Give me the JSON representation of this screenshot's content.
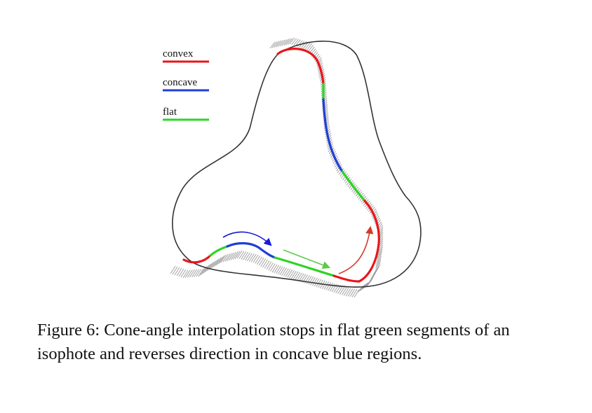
{
  "legend": {
    "convex": "convex",
    "concave": "concave",
    "flat": "flat"
  },
  "colors": {
    "convex": "#e8161b",
    "concave": "#1f3fd6",
    "flat": "#2ed424",
    "outline": "#333333",
    "hatch": "#9a9a9a",
    "arrow_blue": "#1a1ad8",
    "arrow_green": "#5fc94a",
    "arrow_red": "#d13b2a"
  },
  "caption": "Figure 6: Cone-angle interpolation stops in flat green segments of an isophote and reverses direction in concave blue regions."
}
